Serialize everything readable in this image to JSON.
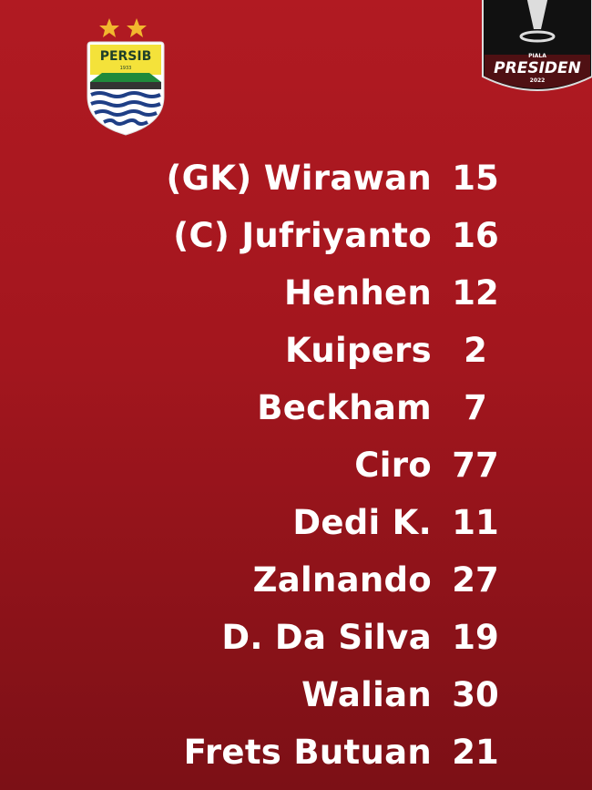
{
  "logos": {
    "club": "PERSIB",
    "club_year": "1933",
    "tournament_top": "PIALA",
    "tournament": "PRESIDEN",
    "tournament_year": "2022"
  },
  "colors": {
    "background": "#b11a22",
    "text": "#ffffff",
    "crest_yellow": "#f4e23a",
    "crest_green": "#1f8a3b",
    "crest_blue": "#1f3f86",
    "star": "#f2b72e"
  },
  "lineup": [
    {
      "name": "(GK) Wirawan",
      "number": "15"
    },
    {
      "name": "(C) Jufriyanto",
      "number": "16"
    },
    {
      "name": "Henhen",
      "number": "12"
    },
    {
      "name": "Kuipers",
      "number": "2"
    },
    {
      "name": "Beckham",
      "number": "7"
    },
    {
      "name": "Ciro",
      "number": "77"
    },
    {
      "name": "Dedi K.",
      "number": "11"
    },
    {
      "name": "Zalnando",
      "number": "27"
    },
    {
      "name": "D. Da Silva",
      "number": "19"
    },
    {
      "name": "Walian",
      "number": "30"
    },
    {
      "name": "Frets Butuan",
      "number": "21"
    }
  ]
}
